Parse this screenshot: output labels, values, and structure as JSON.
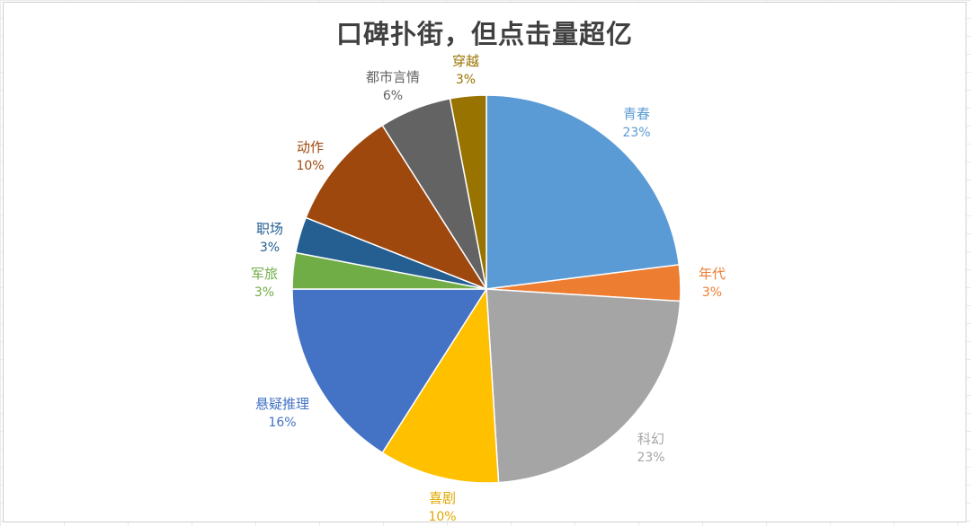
{
  "chart_data": {
    "type": "pie",
    "title": "口碑扑街，但点击量超亿",
    "start_angle_deg": 0,
    "direction": "clockwise",
    "slices": [
      {
        "label": "青春",
        "value": 23,
        "pct_label": "23%",
        "color": "#5B9BD5"
      },
      {
        "label": "年代",
        "value": 3,
        "pct_label": "3%",
        "color": "#ED7D31"
      },
      {
        "label": "科幻",
        "value": 23,
        "pct_label": "23%",
        "color": "#A5A5A5"
      },
      {
        "label": "喜剧",
        "value": 10,
        "pct_label": "10%",
        "color": "#FFC000"
      },
      {
        "label": "悬疑推理",
        "value": 16,
        "pct_label": "16%",
        "color": "#4472C4"
      },
      {
        "label": "军旅",
        "value": 3,
        "pct_label": "3%",
        "color": "#70AD47"
      },
      {
        "label": "职场",
        "value": 3,
        "pct_label": "3%",
        "color": "#255E91"
      },
      {
        "label": "动作",
        "value": 10,
        "pct_label": "10%",
        "color": "#9E480E"
      },
      {
        "label": "都市言情",
        "value": 6,
        "pct_label": "6%",
        "color": "#636363"
      },
      {
        "label": "穿越",
        "value": 3,
        "pct_label": "3%",
        "color": "#997300"
      }
    ],
    "label_colors": {
      "青春": "#5B9BD5",
      "年代": "#ED7D31",
      "科幻": "#A5A5A5",
      "喜剧": "#E0A800",
      "悬疑推理": "#4472C4",
      "军旅": "#70AD47",
      "职场": "#255E91",
      "动作": "#9E480E",
      "都市言情": "#636363",
      "穿越": "#997300"
    },
    "legend": "none",
    "grid": false
  }
}
